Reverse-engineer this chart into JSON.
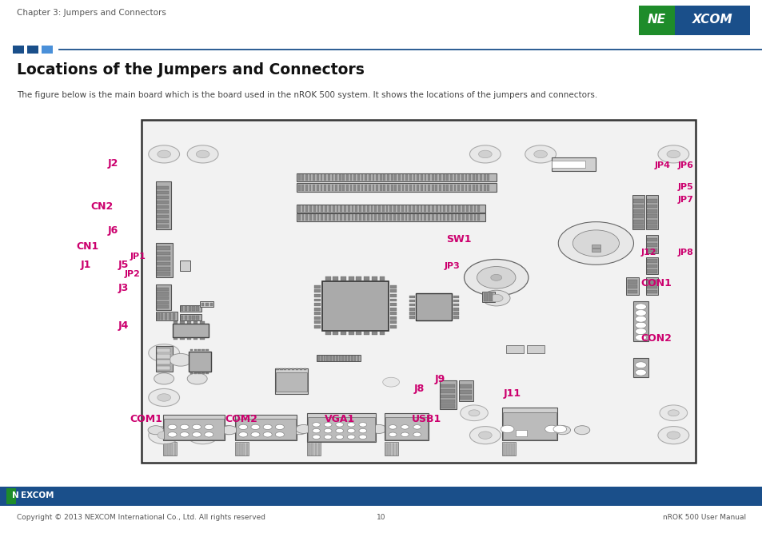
{
  "title": "Locations of the Jumpers and Connectors",
  "subtitle": "The figure below is the main board which is the board used in the nROK 500 system. It shows the locations of the jumpers and connectors.",
  "header_text": "Chapter 3: Jumpers and Connectors",
  "footer_left": "Copyright © 2013 NEXCOM International Co., Ltd. All rights reserved",
  "footer_center": "10",
  "footer_right": "nROK 500 User Manual",
  "bg_color": "#ffffff",
  "nexcom_green": "#1e8c2a",
  "nexcom_blue": "#1a4f8a",
  "footer_bg": "#1a4f8a",
  "label_color": "#cc006e",
  "board_bg": "#f2f2f2",
  "board_border": "#333333",
  "comp_fill": "#d0d0d0",
  "comp_dark": "#888888",
  "comp_mid": "#b0b0b0"
}
